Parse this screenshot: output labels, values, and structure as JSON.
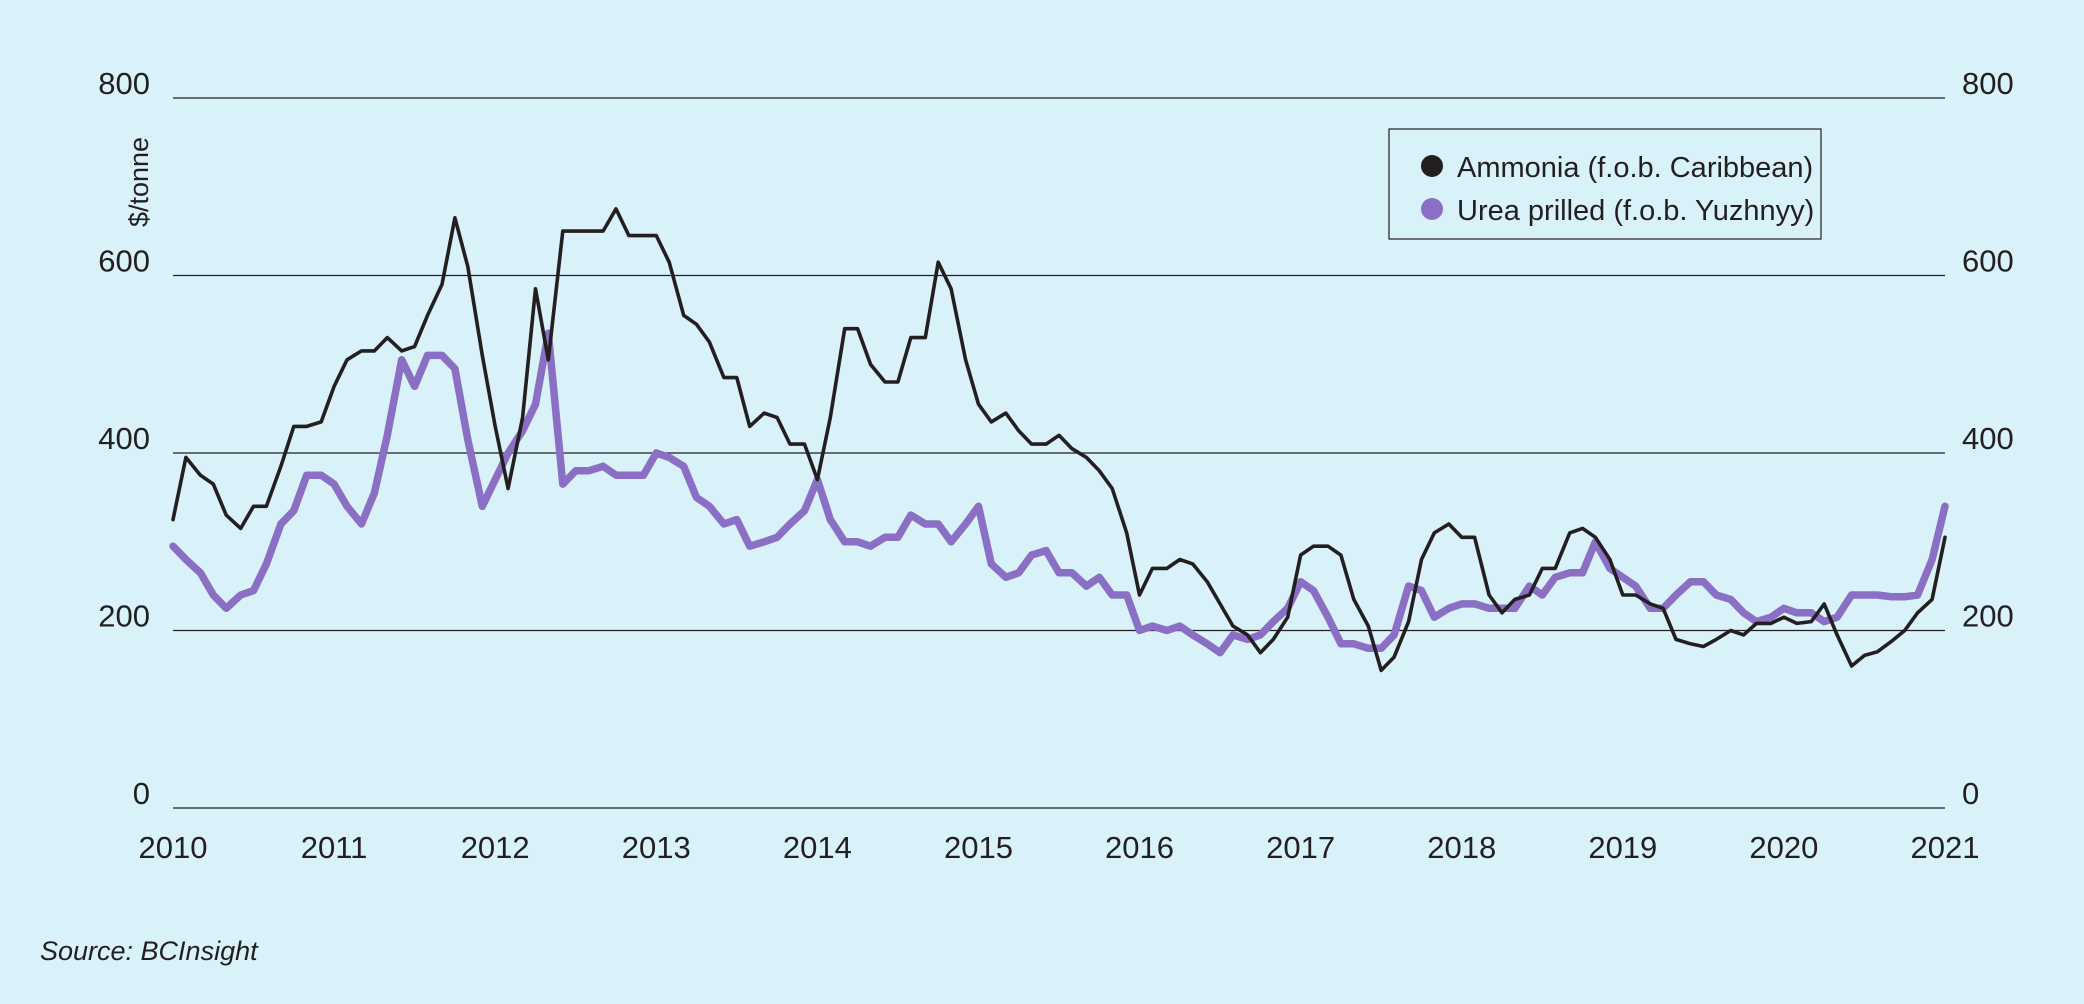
{
  "chart_data": {
    "type": "line",
    "title": "",
    "xlabel": "",
    "ylabel": "$/tonne",
    "ylim": [
      0,
      800
    ],
    "xlim": [
      2010,
      2021
    ],
    "yticks": [
      0,
      200,
      400,
      600,
      800
    ],
    "xticks": [
      "2010",
      "2011",
      "2012",
      "2013",
      "2014",
      "2015",
      "2016",
      "2017",
      "2018",
      "2019",
      "2020",
      "2021"
    ],
    "grid": "horizontal",
    "legend_position": "top-right",
    "series": [
      {
        "name": "Ammonia (f.o.b. Caribbean)",
        "color": "#231f20",
        "x": [
          2010.0,
          2010.08,
          2010.17,
          2010.25,
          2010.33,
          2010.42,
          2010.5,
          2010.58,
          2010.67,
          2010.75,
          2010.83,
          2010.92,
          2011.0,
          2011.08,
          2011.17,
          2011.25,
          2011.33,
          2011.42,
          2011.5,
          2011.58,
          2011.67,
          2011.75,
          2011.83,
          2011.92,
          2012.0,
          2012.08,
          2012.17,
          2012.25,
          2012.33,
          2012.42,
          2012.5,
          2012.58,
          2012.67,
          2012.75,
          2012.83,
          2012.92,
          2013.0,
          2013.08,
          2013.17,
          2013.25,
          2013.33,
          2013.42,
          2013.5,
          2013.58,
          2013.67,
          2013.75,
          2013.83,
          2013.92,
          2014.0,
          2014.08,
          2014.17,
          2014.25,
          2014.33,
          2014.42,
          2014.5,
          2014.58,
          2014.67,
          2014.75,
          2014.83,
          2014.92,
          2015.0,
          2015.08,
          2015.17,
          2015.25,
          2015.33,
          2015.42,
          2015.5,
          2015.58,
          2015.67,
          2015.75,
          2015.83,
          2015.92,
          2016.0,
          2016.08,
          2016.17,
          2016.25,
          2016.33,
          2016.42,
          2016.5,
          2016.58,
          2016.67,
          2016.75,
          2016.83,
          2016.92,
          2017.0,
          2017.08,
          2017.17,
          2017.25,
          2017.33,
          2017.42,
          2017.5,
          2017.58,
          2017.67,
          2017.75,
          2017.83,
          2017.92,
          2018.0,
          2018.08,
          2018.17,
          2018.25,
          2018.33,
          2018.42,
          2018.5,
          2018.58,
          2018.67,
          2018.75,
          2018.83,
          2018.92,
          2019.0,
          2019.08,
          2019.17,
          2019.25,
          2019.33,
          2019.42,
          2019.5,
          2019.58,
          2019.67,
          2019.75,
          2019.83,
          2019.92,
          2020.0,
          2020.08,
          2020.17,
          2020.25,
          2020.33,
          2020.42,
          2020.5,
          2020.58,
          2020.67,
          2020.75,
          2020.83,
          2020.92,
          2021.0
        ],
        "y": [
          325,
          395,
          375,
          365,
          330,
          315,
          340,
          340,
          385,
          430,
          430,
          435,
          475,
          505,
          515,
          515,
          530,
          515,
          520,
          555,
          590,
          665,
          610,
          510,
          430,
          360,
          440,
          585,
          505,
          650,
          650,
          650,
          650,
          675,
          645,
          645,
          645,
          615,
          555,
          545,
          525,
          485,
          485,
          430,
          445,
          440,
          410,
          410,
          370,
          440,
          540,
          540,
          500,
          480,
          480,
          530,
          530,
          615,
          585,
          505,
          455,
          435,
          445,
          425,
          410,
          410,
          420,
          405,
          395,
          380,
          360,
          310,
          240,
          270,
          270,
          280,
          275,
          255,
          230,
          205,
          195,
          175,
          190,
          215,
          285,
          295,
          295,
          285,
          235,
          205,
          155,
          170,
          210,
          280,
          310,
          320,
          305,
          305,
          240,
          220,
          235,
          240,
          270,
          270,
          310,
          315,
          305,
          280,
          240,
          240,
          230,
          225,
          190,
          185,
          182,
          190,
          200,
          195,
          208,
          208,
          215,
          208,
          210,
          230,
          195,
          160,
          172,
          176,
          188,
          200,
          220,
          235,
          305
        ]
      },
      {
        "name": "Urea prilled (f.o.b. Yuzhnyy)",
        "color": "#8a6fc5",
        "x": [
          2010.0,
          2010.08,
          2010.17,
          2010.25,
          2010.33,
          2010.42,
          2010.5,
          2010.58,
          2010.67,
          2010.75,
          2010.83,
          2010.92,
          2011.0,
          2011.08,
          2011.17,
          2011.25,
          2011.33,
          2011.42,
          2011.5,
          2011.58,
          2011.67,
          2011.75,
          2011.83,
          2011.92,
          2012.0,
          2012.08,
          2012.17,
          2012.25,
          2012.33,
          2012.42,
          2012.5,
          2012.58,
          2012.67,
          2012.75,
          2012.83,
          2012.92,
          2013.0,
          2013.08,
          2013.17,
          2013.25,
          2013.33,
          2013.42,
          2013.5,
          2013.58,
          2013.67,
          2013.75,
          2013.83,
          2013.92,
          2014.0,
          2014.08,
          2014.17,
          2014.25,
          2014.33,
          2014.42,
          2014.5,
          2014.58,
          2014.67,
          2014.75,
          2014.83,
          2014.92,
          2015.0,
          2015.08,
          2015.17,
          2015.25,
          2015.33,
          2015.42,
          2015.5,
          2015.58,
          2015.67,
          2015.75,
          2015.83,
          2015.92,
          2016.0,
          2016.08,
          2016.17,
          2016.25,
          2016.33,
          2016.42,
          2016.5,
          2016.58,
          2016.67,
          2016.75,
          2016.83,
          2016.92,
          2017.0,
          2017.08,
          2017.17,
          2017.25,
          2017.33,
          2017.42,
          2017.5,
          2017.58,
          2017.67,
          2017.75,
          2017.83,
          2017.92,
          2018.0,
          2018.08,
          2018.17,
          2018.25,
          2018.33,
          2018.42,
          2018.5,
          2018.58,
          2018.67,
          2018.75,
          2018.83,
          2018.92,
          2019.0,
          2019.08,
          2019.17,
          2019.25,
          2019.33,
          2019.42,
          2019.5,
          2019.58,
          2019.67,
          2019.75,
          2019.83,
          2019.92,
          2020.0,
          2020.08,
          2020.17,
          2020.25,
          2020.33,
          2020.42,
          2020.5,
          2020.58,
          2020.67,
          2020.75,
          2020.83,
          2020.92,
          2021.0
        ],
        "y": [
          295,
          280,
          265,
          240,
          225,
          240,
          245,
          275,
          320,
          335,
          375,
          375,
          365,
          340,
          320,
          355,
          420,
          505,
          475,
          510,
          510,
          495,
          415,
          340,
          370,
          400,
          425,
          455,
          535,
          365,
          380,
          380,
          385,
          375,
          375,
          375,
          400,
          395,
          385,
          350,
          340,
          320,
          325,
          295,
          300,
          305,
          320,
          335,
          370,
          325,
          300,
          300,
          295,
          305,
          305,
          330,
          320,
          320,
          300,
          320,
          340,
          275,
          260,
          265,
          285,
          290,
          265,
          265,
          250,
          260,
          240,
          240,
          200,
          205,
          200,
          205,
          195,
          185,
          175,
          195,
          190,
          195,
          210,
          225,
          255,
          245,
          215,
          185,
          185,
          180,
          180,
          195,
          250,
          245,
          215,
          225,
          230,
          230,
          225,
          225,
          225,
          250,
          240,
          260,
          265,
          265,
          300,
          270,
          260,
          250,
          225,
          225,
          240,
          255,
          255,
          240,
          235,
          220,
          210,
          215,
          225,
          220,
          220,
          210,
          215,
          240,
          240,
          240,
          238,
          238,
          240,
          280,
          340
        ]
      }
    ]
  },
  "source_text": "Source: BCInsight"
}
